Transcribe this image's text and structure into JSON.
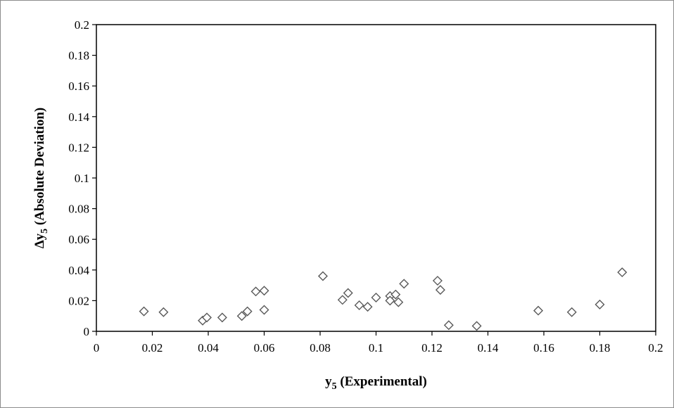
{
  "chart_data": {
    "type": "scatter",
    "title": "",
    "xlabel": "y",
    "xlabel_sub": "5",
    "xlabel_rest": " (Experimental)",
    "ylabel": "Δy",
    "ylabel_sub": "5",
    "ylabel_rest": " (Absolute Deviation)",
    "xlim": [
      0,
      0.2
    ],
    "ylim": [
      0,
      0.2
    ],
    "x_ticks": [
      "0",
      "0.02",
      "0.04",
      "0.06",
      "0.08",
      "0.1",
      "0.12",
      "0.14",
      "0.16",
      "0.18",
      "0.2"
    ],
    "y_ticks": [
      "0",
      "0.02",
      "0.04",
      "0.06",
      "0.08",
      "0.1",
      "0.12",
      "0.14",
      "0.16",
      "0.18",
      "0.2"
    ],
    "grid": false,
    "legend": "none",
    "marker": "open-diamond",
    "marker_color": "#595959",
    "points": [
      {
        "x": 0.017,
        "y": 0.013
      },
      {
        "x": 0.024,
        "y": 0.0125
      },
      {
        "x": 0.038,
        "y": 0.007
      },
      {
        "x": 0.0395,
        "y": 0.009
      },
      {
        "x": 0.045,
        "y": 0.009
      },
      {
        "x": 0.052,
        "y": 0.01
      },
      {
        "x": 0.054,
        "y": 0.013
      },
      {
        "x": 0.057,
        "y": 0.026
      },
      {
        "x": 0.06,
        "y": 0.0265
      },
      {
        "x": 0.06,
        "y": 0.014
      },
      {
        "x": 0.081,
        "y": 0.036
      },
      {
        "x": 0.088,
        "y": 0.0205
      },
      {
        "x": 0.09,
        "y": 0.025
      },
      {
        "x": 0.094,
        "y": 0.017
      },
      {
        "x": 0.097,
        "y": 0.016
      },
      {
        "x": 0.1,
        "y": 0.022
      },
      {
        "x": 0.105,
        "y": 0.023
      },
      {
        "x": 0.105,
        "y": 0.02
      },
      {
        "x": 0.107,
        "y": 0.024
      },
      {
        "x": 0.108,
        "y": 0.019
      },
      {
        "x": 0.11,
        "y": 0.031
      },
      {
        "x": 0.122,
        "y": 0.033
      },
      {
        "x": 0.123,
        "y": 0.027
      },
      {
        "x": 0.126,
        "y": 0.004
      },
      {
        "x": 0.136,
        "y": 0.0035
      },
      {
        "x": 0.158,
        "y": 0.0135
      },
      {
        "x": 0.17,
        "y": 0.0125
      },
      {
        "x": 0.18,
        "y": 0.0175
      },
      {
        "x": 0.188,
        "y": 0.0385
      }
    ]
  }
}
